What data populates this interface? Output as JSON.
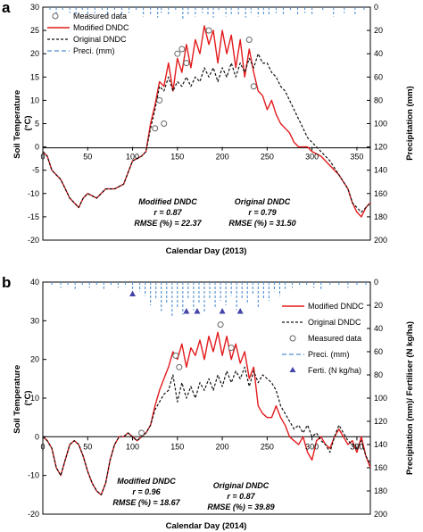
{
  "figure": {
    "colors": {
      "modified": "#e31a1c",
      "original": "#111111",
      "measured": "#666666",
      "precip": "#4f8fd0",
      "ferti": "#4444aa"
    }
  },
  "chart_data": [
    {
      "type": "line",
      "panel_label": "a",
      "xlabel": "Calendar Day (2013)",
      "ylabel_left": [
        "Soil Temperature",
        "(°C)"
      ],
      "ylabel_right": "Precipitation (mm)",
      "xlim": [
        0,
        365
      ],
      "ylim_left": [
        -20,
        30
      ],
      "ylim_right": [
        0,
        200
      ],
      "right_axis_inverted": true,
      "x_ticks": [
        0,
        50,
        100,
        150,
        200,
        250,
        300,
        350
      ],
      "y_ticks_left": [
        30,
        25,
        20,
        15,
        10,
        5,
        0,
        -5,
        -10,
        -15,
        -20
      ],
      "y_ticks_right": [
        0,
        20,
        40,
        60,
        80,
        100,
        120,
        140,
        160,
        180,
        200
      ],
      "grid": false,
      "legend_position": "top-left",
      "legend": [
        "Measured data",
        "Modified DNDC",
        "Original DNDC",
        "Preci. (mm)"
      ],
      "annotations": [
        {
          "lines": [
            "Modified DNDC",
            "r = 0.87",
            "RMSE (%) = 22.37"
          ],
          "x": 175,
          "y": -10
        },
        {
          "lines": [
            "Original DNDC",
            "r = 0.79",
            "RMSE (%) = 31.50"
          ],
          "x": 250,
          "y": -10
        }
      ],
      "series": [
        {
          "name": "Modified DNDC",
          "style": "solid",
          "x": [
            0,
            5,
            10,
            20,
            30,
            40,
            45,
            50,
            60,
            70,
            80,
            90,
            100,
            110,
            115,
            120,
            125,
            130,
            135,
            140,
            145,
            150,
            155,
            160,
            165,
            170,
            175,
            180,
            185,
            190,
            195,
            200,
            205,
            210,
            215,
            220,
            225,
            230,
            235,
            240,
            245,
            250,
            255,
            260,
            265,
            270,
            275,
            280,
            285,
            290,
            295,
            300,
            310,
            320,
            330,
            340,
            345,
            350,
            355,
            360,
            365
          ],
          "y": [
            -1,
            -2,
            -5,
            -7,
            -11,
            -13,
            -11,
            -10,
            -11,
            -9,
            -9,
            -8,
            -3,
            -2,
            -1,
            5,
            9,
            14,
            13,
            18,
            12,
            19,
            16,
            22,
            17,
            23,
            20,
            26,
            22,
            25,
            18,
            25,
            20,
            24,
            17,
            23,
            15,
            21,
            16,
            12,
            11,
            8,
            10,
            7,
            5,
            4,
            3,
            1,
            0,
            0,
            0,
            -1,
            -2,
            -4,
            -6,
            -9,
            -12,
            -14,
            -15,
            -13,
            -12
          ]
        },
        {
          "name": "Original DNDC",
          "style": "dashed",
          "x": [
            0,
            5,
            10,
            20,
            30,
            40,
            45,
            50,
            60,
            70,
            80,
            90,
            100,
            110,
            115,
            120,
            125,
            130,
            135,
            140,
            145,
            150,
            155,
            160,
            165,
            170,
            175,
            180,
            185,
            190,
            195,
            200,
            205,
            210,
            215,
            220,
            225,
            230,
            235,
            240,
            245,
            250,
            255,
            260,
            265,
            270,
            275,
            280,
            285,
            290,
            295,
            300,
            310,
            320,
            330,
            340,
            345,
            350,
            355,
            360,
            365
          ],
          "y": [
            -1,
            -2,
            -5,
            -7,
            -11,
            -13,
            -11,
            -10,
            -11,
            -9,
            -9,
            -8,
            -3,
            -2,
            -1,
            4,
            8,
            13,
            12,
            15,
            12,
            14,
            13,
            15,
            13,
            15,
            14,
            17,
            15,
            17,
            14,
            17,
            15,
            18,
            15,
            18,
            16,
            19,
            17,
            20,
            18,
            18,
            16,
            15,
            13,
            12,
            10,
            8,
            6,
            4,
            2,
            1,
            -1,
            -3,
            -6,
            -9,
            -12,
            -13,
            -14,
            -13,
            -12
          ]
        },
        {
          "name": "Measured data",
          "style": "marker-open-circle",
          "x": [
            125,
            130,
            135,
            150,
            155,
            160,
            185,
            230,
            235
          ],
          "y": [
            4,
            10,
            5,
            20,
            21,
            18,
            25,
            23,
            13
          ]
        },
        {
          "name": "Preci. (mm)",
          "axis": "right",
          "style": "dashed-bars",
          "x": [
            8,
            15,
            22,
            30,
            37,
            44,
            50,
            58,
            66,
            72,
            80,
            88,
            96,
            104,
            112,
            120,
            128,
            132,
            140,
            148,
            156,
            162,
            170,
            178,
            184,
            190,
            196,
            204,
            210,
            218,
            226,
            232,
            240,
            246,
            252,
            260,
            268,
            276,
            284,
            292,
            300,
            312,
            324,
            336,
            348,
            358
          ],
          "y": [
            4,
            6,
            3,
            5,
            7,
            4,
            8,
            5,
            3,
            6,
            4,
            7,
            5,
            3,
            8,
            6,
            9,
            5,
            7,
            4,
            10,
            6,
            8,
            5,
            7,
            9,
            4,
            8,
            6,
            7,
            9,
            5,
            8,
            6,
            7,
            5,
            6,
            4,
            7,
            5,
            6,
            3,
            8,
            5,
            6,
            4
          ]
        }
      ]
    },
    {
      "type": "line",
      "panel_label": "b",
      "xlabel": "Calendar Day (2014)",
      "ylabel_left": [
        "Soil Temperature",
        "(°C)"
      ],
      "ylabel_right": "Precipitation (mm)/ Fertiliser (N kg/ha)",
      "xlim": [
        0,
        365
      ],
      "ylim_left": [
        -20,
        40
      ],
      "ylim_right": [
        0,
        200
      ],
      "right_axis_inverted": true,
      "x_ticks": [
        0,
        50,
        100,
        150,
        200,
        250,
        300,
        350
      ],
      "y_ticks_left": [
        40,
        30,
        20,
        10,
        0,
        -10,
        -20
      ],
      "y_ticks_right": [
        0,
        20,
        40,
        60,
        80,
        100,
        120,
        140,
        160,
        180,
        200
      ],
      "grid": false,
      "legend_position": "top-right",
      "legend": [
        "Modified DNDC",
        "Original DNDC",
        "Measured data",
        "Preci. (mm)",
        "Ferti. (N kg/ha)"
      ],
      "annotations": [
        {
          "lines": [
            "Modified DNDC",
            "r = 0.96",
            "RMSE (%) = 18.67"
          ],
          "x": 150,
          "y": -12
        },
        {
          "lines": [
            "Original DNDC",
            "r = 0.87",
            "RMSE (%) = 39.89"
          ],
          "x": 258,
          "y": -15
        }
      ],
      "series": [
        {
          "name": "Modified DNDC",
          "style": "solid",
          "x": [
            0,
            5,
            10,
            15,
            20,
            25,
            30,
            35,
            40,
            45,
            50,
            55,
            60,
            65,
            70,
            75,
            80,
            85,
            90,
            95,
            100,
            105,
            110,
            115,
            120,
            125,
            130,
            135,
            140,
            145,
            150,
            155,
            160,
            165,
            170,
            175,
            180,
            185,
            190,
            195,
            200,
            205,
            210,
            215,
            220,
            225,
            230,
            235,
            240,
            245,
            250,
            255,
            260,
            265,
            270,
            275,
            280,
            285,
            290,
            295,
            300,
            305,
            310,
            315,
            320,
            325,
            330,
            335,
            340,
            345,
            350,
            355,
            360,
            365
          ],
          "y": [
            0,
            -1,
            -3,
            -8,
            -10,
            -6,
            -2,
            -1,
            -2,
            -5,
            -9,
            -12,
            -14,
            -15,
            -12,
            -6,
            -2,
            0,
            0,
            1,
            0,
            -1,
            0,
            1,
            3,
            8,
            12,
            15,
            18,
            22,
            20,
            24,
            18,
            23,
            21,
            25,
            20,
            26,
            22,
            27,
            21,
            26,
            20,
            24,
            19,
            22,
            15,
            18,
            8,
            6,
            5,
            5,
            8,
            5,
            3,
            0,
            -1,
            -2,
            0,
            -4,
            -6,
            -1,
            0,
            -2,
            -3,
            0,
            2,
            0,
            -2,
            -1,
            -4,
            0,
            -5,
            -8
          ]
        },
        {
          "name": "Original DNDC",
          "style": "dashed",
          "x": [
            0,
            5,
            10,
            15,
            20,
            25,
            30,
            35,
            40,
            45,
            50,
            55,
            60,
            65,
            70,
            75,
            80,
            85,
            90,
            95,
            100,
            105,
            110,
            115,
            120,
            125,
            130,
            135,
            140,
            145,
            150,
            155,
            160,
            165,
            170,
            175,
            180,
            185,
            190,
            195,
            200,
            205,
            210,
            215,
            220,
            225,
            230,
            235,
            240,
            245,
            250,
            255,
            260,
            265,
            270,
            275,
            280,
            285,
            290,
            295,
            300,
            305,
            310,
            315,
            320,
            325,
            330,
            335,
            340,
            345,
            350,
            355,
            360,
            365
          ],
          "y": [
            0,
            -1,
            -3,
            -8,
            -10,
            -6,
            -2,
            -1,
            -2,
            -5,
            -9,
            -12,
            -14,
            -15,
            -12,
            -6,
            -2,
            0,
            0,
            1,
            0,
            -1,
            0,
            1,
            3,
            7,
            9,
            11,
            12,
            16,
            9,
            14,
            10,
            13,
            10,
            14,
            12,
            15,
            12,
            16,
            13,
            17,
            14,
            17,
            15,
            18,
            13,
            17,
            14,
            16,
            15,
            14,
            12,
            8,
            6,
            4,
            2,
            3,
            1,
            3,
            0,
            1,
            -1,
            -2,
            -4,
            0,
            3,
            1,
            -1,
            -2,
            -3,
            -1,
            -5,
            -7
          ]
        },
        {
          "name": "Measured data",
          "style": "marker-open-circle",
          "x": [
            110,
            148,
            152,
            198,
            210
          ],
          "y": [
            1,
            21,
            18,
            29,
            23
          ]
        },
        {
          "name": "Preci. (mm)",
          "axis": "right",
          "style": "dashed-bars",
          "x": [
            10,
            20,
            28,
            36,
            44,
            52,
            60,
            68,
            76,
            84,
            92,
            100,
            108,
            114,
            120,
            126,
            132,
            138,
            144,
            150,
            156,
            162,
            168,
            174,
            180,
            186,
            192,
            198,
            204,
            210,
            216,
            222,
            228,
            234,
            240,
            246,
            252,
            258,
            264,
            270,
            278,
            286,
            294,
            302,
            310,
            320,
            330,
            340,
            350,
            360
          ],
          "y": [
            3,
            5,
            4,
            6,
            3,
            5,
            4,
            6,
            3,
            5,
            4,
            6,
            8,
            12,
            20,
            15,
            25,
            18,
            30,
            22,
            28,
            15,
            24,
            18,
            26,
            14,
            22,
            16,
            20,
            12,
            24,
            15,
            18,
            10,
            22,
            14,
            16,
            8,
            12,
            6,
            5,
            4,
            3,
            5,
            6,
            3,
            4,
            5,
            3,
            4
          ]
        },
        {
          "name": "Ferti. (N kg/ha)",
          "axis": "right",
          "style": "marker-triangle",
          "x": [
            100,
            160,
            172,
            200,
            220
          ],
          "y": [
            10,
            25,
            25,
            25,
            25
          ]
        }
      ]
    }
  ]
}
